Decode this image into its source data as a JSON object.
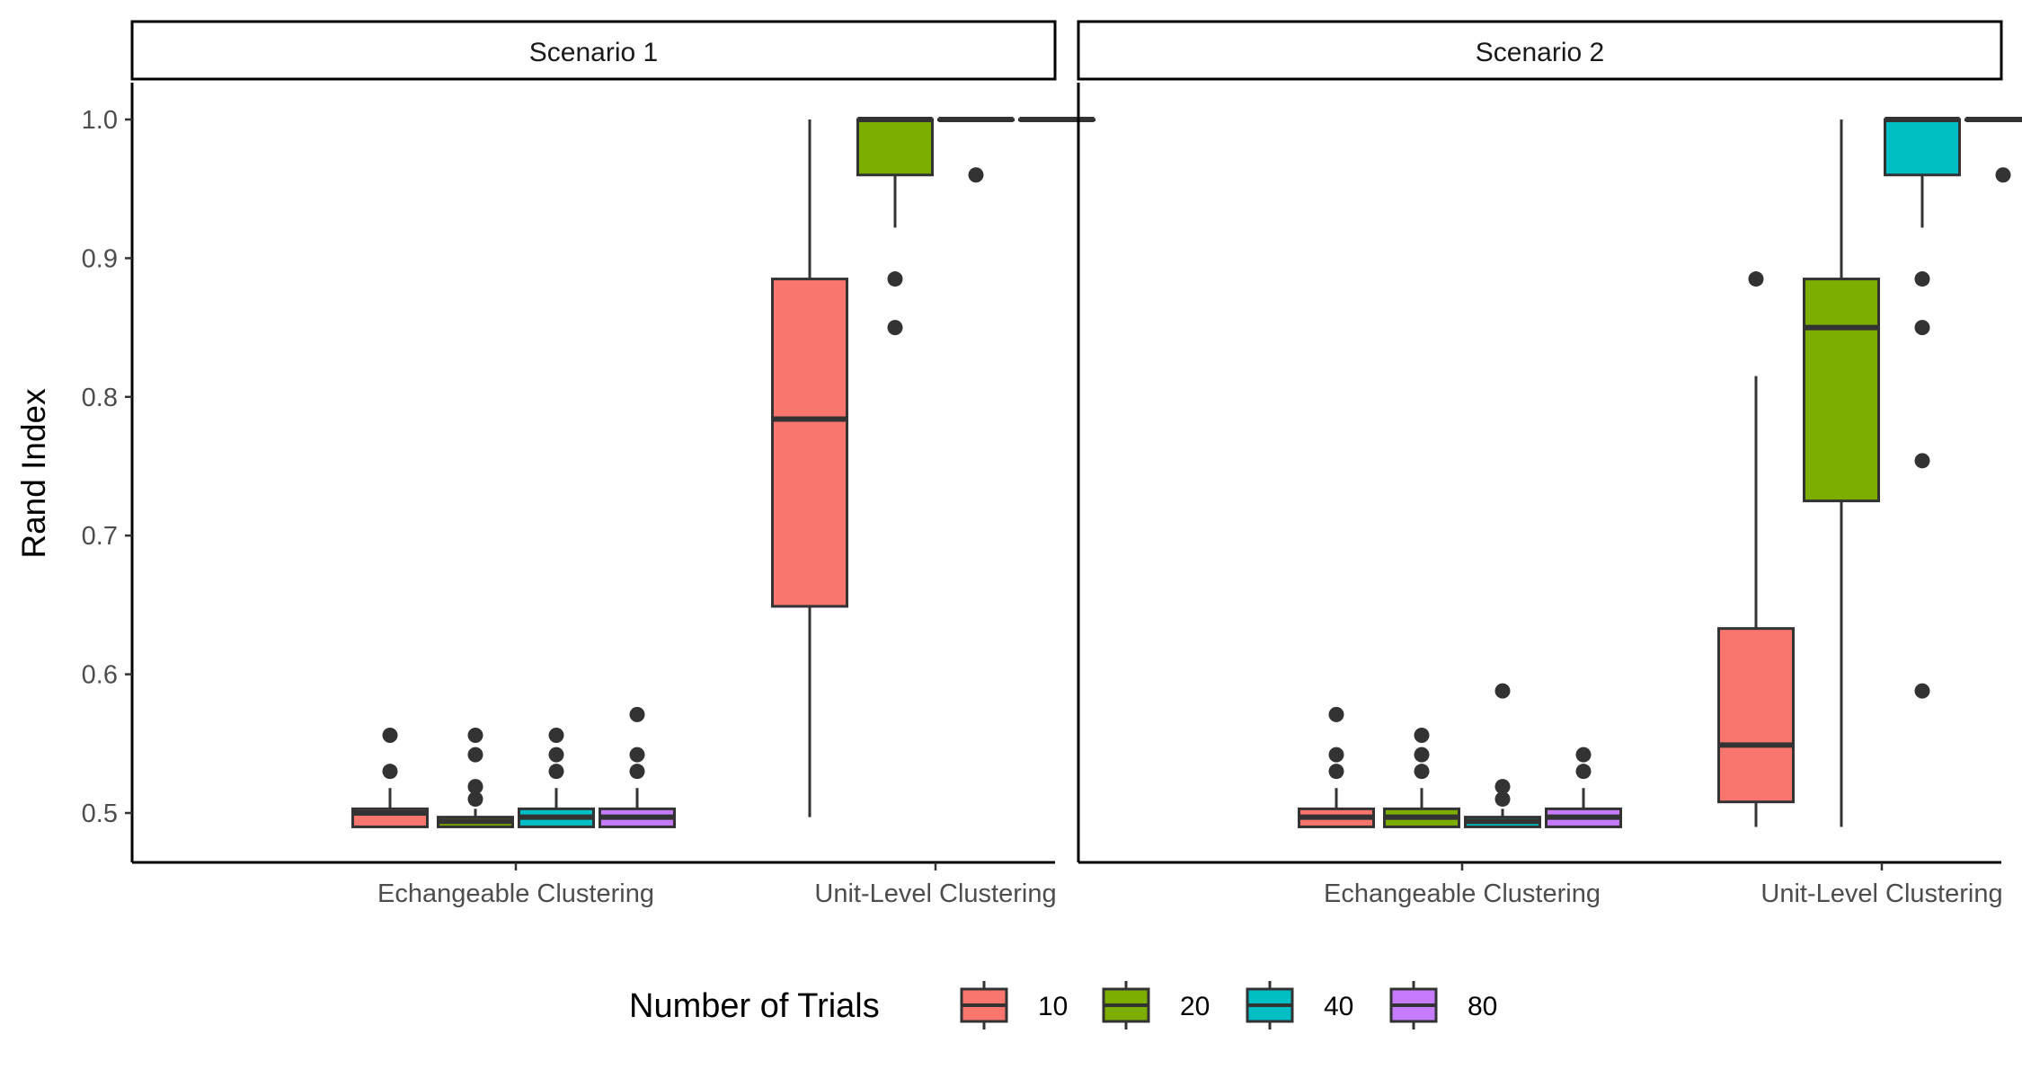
{
  "chart_data": {
    "type": "boxplot",
    "ylabel": "Rand Index",
    "ylim": [
      0.475,
      1.025
    ],
    "yticks": [
      "0.5",
      "0.6",
      "0.7",
      "0.8",
      "0.9",
      "1.0"
    ],
    "categories": [
      "Echangeable Clustering",
      "Unit-Level Clustering"
    ],
    "legend": {
      "title": "Number of Trials",
      "position": "bottom",
      "entries": [
        {
          "label": "10",
          "color": "#F8766D"
        },
        {
          "label": "20",
          "color": "#7CAE00"
        },
        {
          "label": "40",
          "color": "#00BFC4"
        },
        {
          "label": "80",
          "color": "#C77CFF"
        }
      ]
    },
    "facets": [
      {
        "label": "Scenario 1",
        "groups": [
          {
            "category": "Echangeable Clustering",
            "boxes": [
              {
                "trials": "10",
                "lower": 0.49,
                "q1": 0.49,
                "median": 0.5,
                "q3": 0.503,
                "upper": 0.518,
                "outliers": [
                  0.53,
                  0.556
                ]
              },
              {
                "trials": "20",
                "lower": 0.49,
                "q1": 0.49,
                "median": 0.494,
                "q3": 0.497,
                "upper": 0.503,
                "outliers": [
                  0.51,
                  0.519,
                  0.542,
                  0.556
                ]
              },
              {
                "trials": "40",
                "lower": 0.49,
                "q1": 0.49,
                "median": 0.497,
                "q3": 0.503,
                "upper": 0.518,
                "outliers": [
                  0.53,
                  0.542,
                  0.556
                ]
              },
              {
                "trials": "80",
                "lower": 0.49,
                "q1": 0.49,
                "median": 0.497,
                "q3": 0.503,
                "upper": 0.518,
                "outliers": [
                  0.53,
                  0.542,
                  0.571
                ]
              }
            ]
          },
          {
            "category": "Unit-Level Clustering",
            "boxes": [
              {
                "trials": "10",
                "lower": 0.497,
                "q1": 0.649,
                "median": 0.784,
                "q3": 0.885,
                "upper": 1.0,
                "outliers": []
              },
              {
                "trials": "20",
                "lower": 0.922,
                "q1": 0.96,
                "median": 1.0,
                "q3": 1.0,
                "upper": 1.0,
                "outliers": [
                  0.85,
                  0.885
                ]
              },
              {
                "trials": "40",
                "lower": 1.0,
                "q1": 1.0,
                "median": 1.0,
                "q3": 1.0,
                "upper": 1.0,
                "outliers": [
                  0.96
                ]
              },
              {
                "trials": "80",
                "lower": 1.0,
                "q1": 1.0,
                "median": 1.0,
                "q3": 1.0,
                "upper": 1.0,
                "outliers": []
              }
            ]
          }
        ]
      },
      {
        "label": "Scenario 2",
        "groups": [
          {
            "category": "Echangeable Clustering",
            "boxes": [
              {
                "trials": "10",
                "lower": 0.49,
                "q1": 0.49,
                "median": 0.497,
                "q3": 0.503,
                "upper": 0.518,
                "outliers": [
                  0.53,
                  0.542,
                  0.571
                ]
              },
              {
                "trials": "20",
                "lower": 0.49,
                "q1": 0.49,
                "median": 0.497,
                "q3": 0.503,
                "upper": 0.518,
                "outliers": [
                  0.53,
                  0.542,
                  0.556
                ]
              },
              {
                "trials": "40",
                "lower": 0.49,
                "q1": 0.49,
                "median": 0.494,
                "q3": 0.497,
                "upper": 0.503,
                "outliers": [
                  0.51,
                  0.519,
                  0.588
                ]
              },
              {
                "trials": "80",
                "lower": 0.49,
                "q1": 0.49,
                "median": 0.497,
                "q3": 0.503,
                "upper": 0.518,
                "outliers": [
                  0.53,
                  0.542
                ]
              }
            ]
          },
          {
            "category": "Unit-Level Clustering",
            "boxes": [
              {
                "trials": "10",
                "lower": 0.49,
                "q1": 0.508,
                "median": 0.549,
                "q3": 0.633,
                "upper": 0.815,
                "outliers": [
                  0.885
                ]
              },
              {
                "trials": "20",
                "lower": 0.49,
                "q1": 0.725,
                "median": 0.85,
                "q3": 0.885,
                "upper": 1.0,
                "outliers": []
              },
              {
                "trials": "40",
                "lower": 0.922,
                "q1": 0.96,
                "median": 1.0,
                "q3": 1.0,
                "upper": 1.0,
                "outliers": [
                  0.588,
                  0.754,
                  0.85,
                  0.885
                ]
              },
              {
                "trials": "80",
                "lower": 1.0,
                "q1": 1.0,
                "median": 1.0,
                "q3": 1.0,
                "upper": 1.0,
                "outliers": [
                  0.96
                ]
              }
            ]
          }
        ]
      }
    ]
  }
}
